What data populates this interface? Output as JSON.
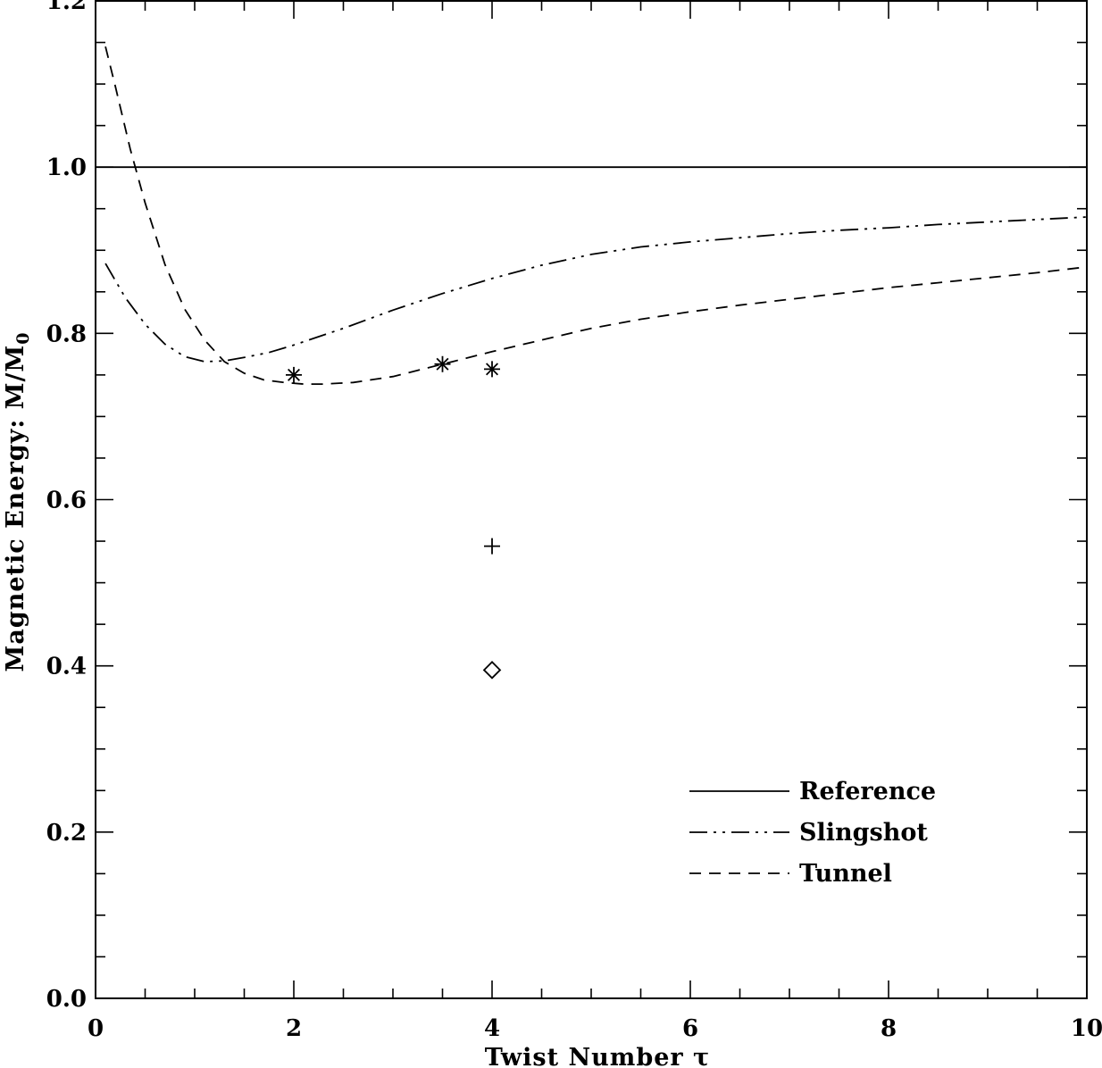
{
  "chart_data": {
    "type": "line",
    "title": "",
    "xlabel": "Twist Number τ",
    "ylabel": "Magnetic Energy: M/M",
    "ylabel_subscript": "0",
    "xlim": [
      0,
      10
    ],
    "ylim": [
      0.0,
      1.2
    ],
    "x_ticks": [
      "0",
      "2",
      "4",
      "6",
      "8",
      "10"
    ],
    "y_ticks": [
      "0.0",
      "0.2",
      "0.4",
      "0.6",
      "0.8",
      "1.0",
      "1.2"
    ],
    "grid": false,
    "legend_position": "bottom-right",
    "series": [
      {
        "name": "Reference",
        "style": "solid",
        "x": [
          0,
          10
        ],
        "y": [
          1.0,
          1.0
        ]
      },
      {
        "name": "Slingshot",
        "style": "dash-dot-dot",
        "x": [
          0.1,
          0.3,
          0.5,
          0.7,
          0.9,
          1.1,
          1.3,
          1.5,
          1.75,
          2.0,
          2.5,
          3.0,
          3.5,
          4.0,
          4.5,
          5.0,
          5.5,
          6.0,
          6.5,
          7.0,
          7.5,
          8.0,
          8.5,
          9.0,
          9.5,
          10.0
        ],
        "y": [
          0.884,
          0.843,
          0.811,
          0.787,
          0.772,
          0.766,
          0.767,
          0.771,
          0.777,
          0.786,
          0.806,
          0.828,
          0.848,
          0.866,
          0.882,
          0.895,
          0.904,
          0.91,
          0.915,
          0.92,
          0.924,
          0.927,
          0.931,
          0.934,
          0.937,
          0.94
        ]
      },
      {
        "name": "Tunnel",
        "style": "dashed",
        "x": [
          0.1,
          0.2,
          0.35,
          0.5,
          0.7,
          0.9,
          1.1,
          1.3,
          1.5,
          1.7,
          1.9,
          2.1,
          2.3,
          2.6,
          3.0,
          3.5,
          4.0,
          4.5,
          5.0,
          5.5,
          6.0,
          6.5,
          7.0,
          7.5,
          8.0,
          8.5,
          9.0,
          9.5,
          10.0
        ],
        "y": [
          1.145,
          1.097,
          1.022,
          0.957,
          0.883,
          0.829,
          0.792,
          0.766,
          0.752,
          0.744,
          0.741,
          0.739,
          0.739,
          0.741,
          0.748,
          0.763,
          0.778,
          0.792,
          0.806,
          0.817,
          0.826,
          0.834,
          0.841,
          0.848,
          0.855,
          0.861,
          0.867,
          0.873,
          0.88
        ]
      }
    ],
    "markers": [
      {
        "symbol": "asterisk",
        "x": 2.0,
        "y": 0.75
      },
      {
        "symbol": "asterisk",
        "x": 3.5,
        "y": 0.763
      },
      {
        "symbol": "asterisk",
        "x": 4.0,
        "y": 0.757
      },
      {
        "symbol": "plus",
        "x": 4.0,
        "y": 0.544
      },
      {
        "symbol": "diamond",
        "x": 4.0,
        "y": 0.395
      }
    ],
    "legend": [
      {
        "label": "Reference",
        "style": "solid"
      },
      {
        "label": "Slingshot",
        "style": "dash-dot-dot"
      },
      {
        "label": "Tunnel",
        "style": "dashed"
      }
    ]
  }
}
